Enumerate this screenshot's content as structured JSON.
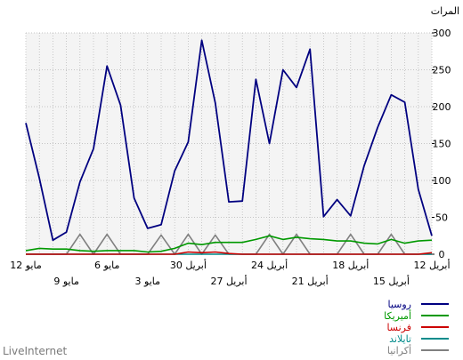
{
  "chart_data": {
    "type": "line",
    "ylabel": "المرات",
    "ylim": [
      0,
      300
    ],
    "yticks": [
      0,
      50,
      100,
      150,
      200,
      250,
      300
    ],
    "grid": true,
    "legend_position": "bottom-right",
    "x_labels_row1": [
      "12 مايو",
      "6 مايو",
      "30 أبريل",
      "24 أبريل",
      "18 أبريل",
      "12 أبريل"
    ],
    "x_labels_row2": [
      "9 مايو",
      "3 مايو",
      "27 أبريل",
      "21 أبريل",
      "15 أبريل"
    ],
    "x_dates": [
      "12 مايو",
      "11 مايو",
      "10 مايو",
      "9 مايو",
      "8 مايو",
      "7 مايو",
      "6 مايو",
      "5 مايو",
      "4 مايو",
      "3 مايو",
      "2 مايو",
      "1 مايو",
      "30 أبريل",
      "29 أبريل",
      "28 أبريل",
      "27 أبريل",
      "26 أبريل",
      "25 أبريل",
      "24 أبريل",
      "23 أبريل",
      "22 أبريل",
      "21 أبريل",
      "20 أبريل",
      "19 أبريل",
      "18 أبريل",
      "17 أبريل",
      "16 أبريل",
      "15 أبريل",
      "14 أبريل",
      "13 أبريل",
      "12 أبريل"
    ],
    "series": [
      {
        "name": "روسيا",
        "color": "#000080",
        "values": [
          178,
          103,
          19,
          30,
          98,
          143,
          255,
          202,
          76,
          35,
          40,
          113,
          152,
          290,
          205,
          71,
          72,
          237,
          150,
          250,
          226,
          278,
          51,
          74,
          52,
          120,
          172,
          216,
          206,
          88,
          25
        ]
      },
      {
        "name": "أميريكا",
        "color": "#009900",
        "values": [
          5,
          8,
          7,
          7,
          5,
          4,
          5,
          5,
          5,
          3,
          4,
          8,
          15,
          13,
          16,
          16,
          16,
          20,
          25,
          20,
          23,
          21,
          20,
          18,
          18,
          15,
          14,
          20,
          15,
          18,
          19
        ]
      },
      {
        "name": "فرنسا",
        "color": "#cc0000",
        "values": [
          0,
          0,
          0,
          0,
          0,
          0,
          0,
          0,
          0,
          0,
          0,
          0,
          3,
          2,
          3,
          1,
          0,
          0,
          0,
          0,
          0,
          0,
          0,
          0,
          0,
          0,
          0,
          0,
          0,
          0,
          2
        ]
      },
      {
        "name": "تايلاند",
        "color": "#008b8b",
        "values": [
          0,
          0,
          0,
          0,
          0,
          0,
          0,
          0,
          0,
          0,
          0,
          0,
          0,
          0,
          0,
          0,
          0,
          0,
          0,
          0,
          0,
          0,
          0,
          0,
          0,
          0,
          0,
          0,
          0,
          0,
          0
        ]
      },
      {
        "name": "أكرانيا",
        "color": "#808080",
        "values": [
          0,
          0,
          0,
          0,
          27,
          0,
          27,
          0,
          0,
          0,
          26,
          0,
          27,
          0,
          26,
          0,
          0,
          0,
          27,
          0,
          27,
          0,
          0,
          0,
          27,
          0,
          0,
          27,
          0,
          0,
          0
        ]
      }
    ]
  },
  "watermark": "LiveInternet"
}
